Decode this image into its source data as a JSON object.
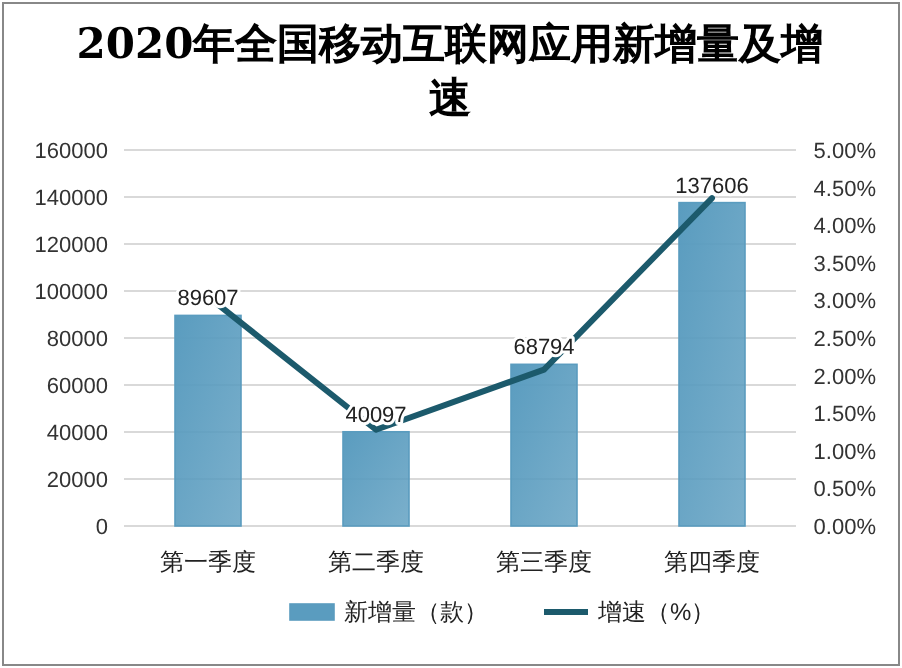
{
  "chart_data": {
    "type": "bar",
    "title": "2020年全国移动互联网应用新增量及增速",
    "categories": [
      "第一季度",
      "第二季度",
      "第三季度",
      "第四季度"
    ],
    "series": [
      {
        "name": "新增量（款）",
        "color": "#5a9cbf",
        "values": [
          89607,
          40097,
          68794,
          137606
        ],
        "value_labels": [
          "89607",
          "40097",
          "68794",
          "137606"
        ]
      },
      {
        "name": "增速（%）",
        "type": "line",
        "axis": "y2",
        "color": "#1c5a6c",
        "values": [
          3.05,
          1.28,
          2.08,
          4.36
        ]
      }
    ],
    "ylim": [
      0,
      160000
    ],
    "yticks": [
      0,
      20000,
      40000,
      60000,
      80000,
      100000,
      120000,
      140000,
      160000
    ],
    "y2lim": [
      0,
      5
    ],
    "y2ticks": [
      {
        "value": 0,
        "label": "0.00%"
      },
      {
        "value": 0.5,
        "label": "0.50%"
      },
      {
        "value": 1,
        "label": "1.00%"
      },
      {
        "value": 1.5,
        "label": "1.50%"
      },
      {
        "value": 2,
        "label": "2.00%"
      },
      {
        "value": 2.5,
        "label": "2.50%"
      },
      {
        "value": 3,
        "label": "3.00%"
      },
      {
        "value": 3.5,
        "label": "3.50%"
      },
      {
        "value": 4,
        "label": "4.00%"
      },
      {
        "value": 4.5,
        "label": "4.50%"
      },
      {
        "value": 5,
        "label": "5.00%"
      }
    ],
    "grid": "y",
    "legend": "bottom",
    "marker": "none",
    "line_style": "solid"
  }
}
